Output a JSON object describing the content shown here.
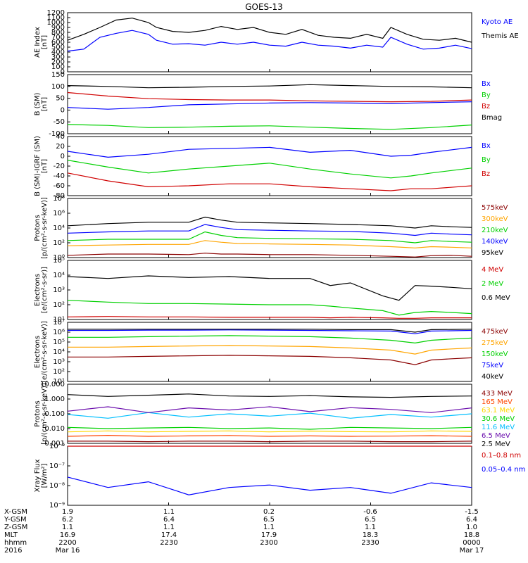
{
  "title": "GOES-13",
  "chart_data": [
    {
      "type": "line",
      "ylabel": "AE Index\n[nT]",
      "yscale": "linear",
      "ylim": [
        0,
        1200
      ],
      "yticks": [
        "0",
        "100",
        "200",
        "300",
        "400",
        "500",
        "600",
        "700",
        "800",
        "900",
        "1000",
        "1100",
        "1200"
      ],
      "x": [
        0,
        0.04,
        0.08,
        0.12,
        0.16,
        0.2,
        0.22,
        0.26,
        0.3,
        0.34,
        0.38,
        0.42,
        0.46,
        0.5,
        0.54,
        0.58,
        0.62,
        0.66,
        0.7,
        0.74,
        0.78,
        0.8,
        0.84,
        0.88,
        0.92,
        0.96,
        1
      ],
      "series": [
        {
          "name": "Kyoto AE",
          "color": "#0000ff",
          "values": [
            420,
            460,
            700,
            780,
            840,
            760,
            640,
            560,
            570,
            540,
            600,
            560,
            600,
            540,
            520,
            600,
            540,
            520,
            480,
            540,
            500,
            700,
            560,
            460,
            480,
            540,
            470
          ]
        },
        {
          "name": "Themis AE",
          "color": "#000000",
          "values": [
            640,
            760,
            900,
            1050,
            1090,
            1000,
            900,
            820,
            800,
            840,
            920,
            860,
            900,
            800,
            760,
            860,
            740,
            700,
            680,
            760,
            680,
            900,
            760,
            660,
            640,
            680,
            600
          ]
        }
      ]
    },
    {
      "type": "line",
      "ylabel": "B (SM)\n[nT]",
      "yscale": "linear",
      "ylim": [
        -120,
        150
      ],
      "yticks": [
        "-100",
        "-50",
        "0",
        "50",
        "100",
        "150"
      ],
      "x": [
        0,
        0.1,
        0.2,
        0.3,
        0.4,
        0.5,
        0.6,
        0.7,
        0.8,
        0.9,
        1
      ],
      "series": [
        {
          "name": "Bx",
          "color": "#0000ff",
          "values": [
            0,
            -8,
            0,
            12,
            16,
            20,
            22,
            20,
            18,
            22,
            26
          ]
        },
        {
          "name": "By",
          "color": "#00d000",
          "values": [
            -78,
            -82,
            -92,
            -90,
            -86,
            -84,
            -90,
            -96,
            -100,
            -92,
            -80
          ]
        },
        {
          "name": "Bz",
          "color": "#d00000",
          "values": [
            68,
            52,
            40,
            36,
            34,
            34,
            30,
            28,
            26,
            28,
            34
          ]
        },
        {
          "name": "Bmag",
          "color": "#000000",
          "values": [
            100,
            96,
            90,
            92,
            96,
            98,
            104,
            100,
            96,
            94,
            90
          ]
        }
      ]
    },
    {
      "type": "line",
      "ylabel": "B (SM)-IGRF (SM)\n[nT]",
      "yscale": "linear",
      "ylim": [
        -80,
        40
      ],
      "yticks": [
        "-80",
        "-60",
        "-40",
        "-20",
        "0",
        "20",
        "40"
      ],
      "x": [
        0,
        0.1,
        0.2,
        0.3,
        0.4,
        0.5,
        0.6,
        0.7,
        0.8,
        0.85,
        0.9,
        1
      ],
      "series": [
        {
          "name": "Bx",
          "color": "#0000ff",
          "values": [
            10,
            -2,
            4,
            14,
            16,
            18,
            8,
            12,
            0,
            2,
            8,
            18
          ]
        },
        {
          "name": "By",
          "color": "#00d000",
          "values": [
            -8,
            -22,
            -34,
            -26,
            -20,
            -14,
            -26,
            -36,
            -44,
            -40,
            -34,
            -24
          ]
        },
        {
          "name": "Bz",
          "color": "#d00000",
          "values": [
            -34,
            -50,
            -62,
            -60,
            -56,
            -56,
            -62,
            -66,
            -70,
            -66,
            -66,
            -60
          ]
        }
      ]
    },
    {
      "type": "line",
      "ylabel": "Protons\n[p/(cm²-s-sr-keV)]",
      "yscale": "log",
      "ylim": [
        1,
        100000000
      ],
      "yticks": [
        "10⁰",
        "10²",
        "10⁴",
        "10⁶",
        "10⁸"
      ],
      "x": [
        0,
        0.1,
        0.2,
        0.3,
        0.34,
        0.38,
        0.42,
        0.5,
        0.6,
        0.7,
        0.8,
        0.86,
        0.9,
        0.95,
        1
      ],
      "series": [
        {
          "name": "575keV",
          "color": "#8b0000",
          "values": [
            2,
            3,
            3,
            2.5,
            4,
            3,
            3,
            2.5,
            2.5,
            2,
            1.5,
            1.2,
            1.8,
            2,
            1.5
          ]
        },
        {
          "name": "300keV",
          "color": "#ffa500",
          "values": [
            40,
            50,
            60,
            60,
            200,
            120,
            80,
            70,
            60,
            50,
            30,
            20,
            30,
            25,
            20
          ]
        },
        {
          "name": "210keV",
          "color": "#00d000",
          "values": [
            200,
            300,
            300,
            300,
            3000,
            1000,
            500,
            400,
            350,
            300,
            200,
            100,
            200,
            150,
            120
          ]
        },
        {
          "name": "140keV",
          "color": "#0000ff",
          "values": [
            2000,
            3000,
            4000,
            4000,
            30000,
            12000,
            6000,
            5000,
            4000,
            3500,
            2000,
            1000,
            2000,
            1500,
            1200
          ]
        },
        {
          "name": "95keV",
          "color": "#000000",
          "values": [
            20000,
            40000,
            60000,
            60000,
            300000,
            120000,
            60000,
            50000,
            40000,
            30000,
            20000,
            10000,
            20000,
            15000,
            12000
          ]
        }
      ]
    },
    {
      "type": "line",
      "ylabel": "Electrons\n[e/(cm²-s-sr)]",
      "yscale": "log",
      "ylim": [
        10,
        100000
      ],
      "yticks": [
        "10¹",
        "10²",
        "10³",
        "10⁴",
        "10⁵"
      ],
      "x": [
        0,
        0.1,
        0.2,
        0.3,
        0.4,
        0.5,
        0.6,
        0.65,
        0.7,
        0.78,
        0.82,
        0.86,
        0.9,
        0.95,
        1
      ],
      "series": [
        {
          "name": "4 MeV",
          "color": "#d00000",
          "values": [
            15,
            16,
            15,
            15,
            14,
            14,
            14,
            13,
            14,
            13,
            12,
            12,
            13,
            13,
            13
          ]
        },
        {
          "name": "2 MeV",
          "color": "#00d000",
          "values": [
            200,
            150,
            120,
            120,
            110,
            100,
            100,
            80,
            60,
            40,
            20,
            30,
            35,
            30,
            25
          ]
        },
        {
          "name": "0.6 MeV",
          "color": "#000000",
          "values": [
            8000,
            6000,
            9000,
            7000,
            8000,
            6000,
            6000,
            2000,
            3000,
            400,
            200,
            2000,
            1800,
            1500,
            1200
          ]
        }
      ]
    },
    {
      "type": "line",
      "ylabel": "Electrons\n[e/(cm²-s-sr-keV)]",
      "yscale": "log",
      "ylim": [
        10,
        10000000
      ],
      "yticks": [
        "10¹",
        "10²",
        "10³",
        "10⁴",
        "10⁵",
        "10⁶",
        "10⁷"
      ],
      "x": [
        0,
        0.1,
        0.2,
        0.3,
        0.4,
        0.5,
        0.6,
        0.7,
        0.8,
        0.86,
        0.9,
        0.95,
        1
      ],
      "series": [
        {
          "name": "475keV",
          "color": "#8b0000",
          "values": [
            3000,
            3000,
            3500,
            4000,
            4500,
            4000,
            3500,
            2500,
            1500,
            500,
            1500,
            2000,
            2500
          ]
        },
        {
          "name": "275keV",
          "color": "#ffa500",
          "values": [
            30000,
            30000,
            35000,
            40000,
            45000,
            40000,
            35000,
            25000,
            15000,
            6000,
            15000,
            20000,
            25000
          ]
        },
        {
          "name": "150keV",
          "color": "#00d000",
          "values": [
            300000,
            300000,
            350000,
            400000,
            450000,
            400000,
            350000,
            250000,
            150000,
            80000,
            150000,
            200000,
            250000
          ]
        },
        {
          "name": "75keV",
          "color": "#0000ff",
          "values": [
            1500000,
            1500000,
            1600000,
            1600000,
            1700000,
            1600000,
            1500000,
            1400000,
            1300000,
            700000,
            1300000,
            1400000,
            1500000
          ]
        },
        {
          "name": "40keV",
          "color": "#000000",
          "values": [
            2000000,
            2000000,
            2000000,
            2000000,
            2000000,
            2000000,
            2000000,
            1800000,
            1800000,
            1000000,
            1800000,
            1900000,
            2000000
          ]
        }
      ]
    },
    {
      "type": "line",
      "ylabel": "Protons\n[p/(cm²-s-sr-keV)]",
      "yscale": "log",
      "ylim": [
        0.001,
        10
      ],
      "yticks": [
        "0.001",
        "0.010",
        "0.100",
        "1.000",
        "10.000"
      ],
      "x": [
        0,
        0.1,
        0.2,
        0.3,
        0.4,
        0.5,
        0.6,
        0.7,
        0.8,
        0.9,
        1
      ],
      "series": [
        {
          "name": "433 MeV",
          "color": "#8b0000",
          "values": [
            0.0014,
            0.0014,
            0.0013,
            0.0014,
            0.0014,
            0.0013,
            0.0014,
            0.0014,
            0.0013,
            0.0013,
            0.0014
          ]
        },
        {
          "name": "165 MeV",
          "color": "#ff4500",
          "values": [
            0.003,
            0.0035,
            0.003,
            0.0032,
            0.0034,
            0.003,
            0.0032,
            0.003,
            0.0031,
            0.0033,
            0.003
          ]
        },
        {
          "name": "63.1 MeV",
          "color": "#ffd700",
          "values": [
            0.006,
            0.007,
            0.006,
            0.0065,
            0.007,
            0.006,
            0.0068,
            0.0062,
            0.006,
            0.007,
            0.0065
          ]
        },
        {
          "name": "30.6 MeV",
          "color": "#00d000",
          "values": [
            0.012,
            0.01,
            0.011,
            0.012,
            0.01,
            0.011,
            0.009,
            0.012,
            0.011,
            0.01,
            0.012
          ]
        },
        {
          "name": "11.6 MeV",
          "color": "#00bfff",
          "values": [
            0.09,
            0.05,
            0.12,
            0.06,
            0.1,
            0.07,
            0.11,
            0.05,
            0.09,
            0.06,
            0.1
          ]
        },
        {
          "name": "6.5 MeV",
          "color": "#6a0dad",
          "values": [
            0.15,
            0.3,
            0.12,
            0.25,
            0.18,
            0.3,
            0.14,
            0.26,
            0.2,
            0.12,
            0.25
          ]
        },
        {
          "name": "2.5 MeV",
          "color": "#000000",
          "values": [
            2,
            1.5,
            1.8,
            2.2,
            1.6,
            1.5,
            1.7,
            1.4,
            1.3,
            1.5,
            1.6
          ]
        }
      ]
    },
    {
      "type": "line",
      "ylabel": "Xray Flux\n[W/m²]",
      "yscale": "log",
      "ylim": [
        1e-09,
        1e-08
      ],
      "yticks": [
        "10⁻⁹",
        "10⁻⁸",
        "10⁻⁷",
        "10⁻⁶"
      ],
      "x": [
        0,
        0.1,
        0.2,
        0.3,
        0.4,
        0.5,
        0.6,
        0.7,
        0.8,
        0.9,
        1
      ],
      "series": [
        {
          "name": "0.1–0.8 nm",
          "color": "#d00000",
          "values": [
            4e-07,
            3.8e-07,
            3.6e-07,
            3.9e-07,
            3.7e-07,
            3.5e-07,
            3.6e-07,
            3.4e-07,
            3.5e-07,
            3.6e-07,
            3.5e-07
          ]
        },
        {
          "name": "0.05–0.4 nm",
          "color": "#0000ff",
          "values": [
            3e-09,
            2e-09,
            2.5e-09,
            1.5e-09,
            2e-09,
            2.2e-09,
            1.8e-09,
            2e-09,
            1.6e-09,
            2.4e-09,
            2e-09
          ]
        }
      ]
    }
  ],
  "x_axis": {
    "row_labels": [
      "X-GSM",
      "Y-GSM",
      "Z-GSM",
      "MLT",
      "hhmm",
      "2016"
    ],
    "columns": [
      {
        "values": [
          "1.9",
          "6.2",
          "1.1",
          "16.9",
          "2200",
          "Mar 16"
        ]
      },
      {
        "values": [
          "1.1",
          "6.4",
          "1.1",
          "17.4",
          "2230",
          ""
        ]
      },
      {
        "values": [
          "0.2",
          "6.5",
          "1.1",
          "17.9",
          "2300",
          ""
        ]
      },
      {
        "values": [
          "-0.6",
          "6.5",
          "1.1",
          "18.3",
          "2330",
          ""
        ]
      },
      {
        "values": [
          "-1.5",
          "6.4",
          "1.0",
          "18.8",
          "0000",
          "Mar 17"
        ]
      }
    ]
  }
}
